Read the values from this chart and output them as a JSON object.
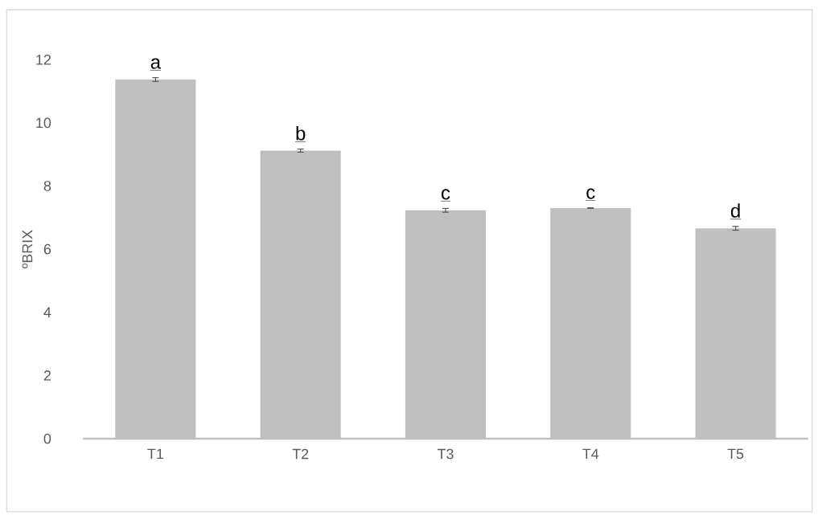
{
  "chart_data": {
    "type": "bar",
    "ylabel": "ºBRIX",
    "categories": [
      "T1",
      "T2",
      "T3",
      "T4",
      "T5"
    ],
    "values": [
      11.37,
      9.12,
      7.23,
      7.3,
      6.66
    ],
    "errors": [
      0.06,
      0.05,
      0.06,
      0.01,
      0.06
    ],
    "color": "#bfbfbf",
    "ylim": [
      0,
      12
    ],
    "yticks": [
      0,
      2,
      4,
      6,
      8,
      10,
      12
    ],
    "grid": false,
    "annotations": [
      {
        "text": "a",
        "x": "T1",
        "y": 11.43
      },
      {
        "text": "b",
        "x": "T2",
        "y": 9.17
      },
      {
        "text": "c",
        "x": "T3",
        "y": 7.29
      },
      {
        "text": "c",
        "x": "T4",
        "y": 7.31
      },
      {
        "text": "d",
        "x": "T5",
        "y": 6.72
      }
    ]
  }
}
